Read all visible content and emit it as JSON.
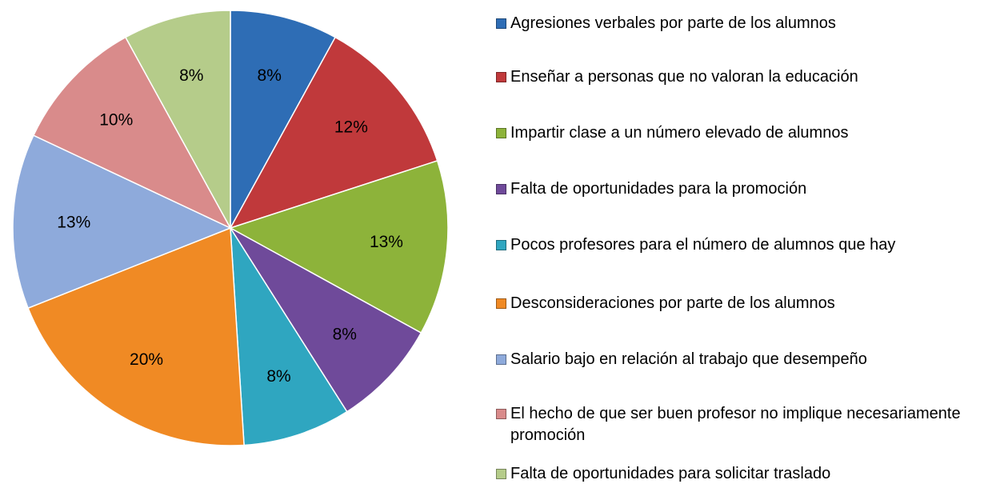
{
  "chart_data": {
    "type": "pie",
    "categories": [
      "Agresiones verbales por parte de los alumnos",
      "Enseñar a personas que no valoran la educación",
      "Impartir clase a un número elevado de alumnos",
      "Falta de oportunidades para la promoción",
      "Pocos profesores para el número de alumnos que hay",
      "Desconsideraciones por parte de los alumnos",
      "Salario bajo en relación al trabajo que desempeño",
      "El hecho de que ser buen profesor no implique necesariamente promoción",
      "Falta de oportunidades para solicitar traslado"
    ],
    "values": [
      8,
      12,
      13,
      8,
      8,
      20,
      13,
      10,
      8
    ],
    "value_labels": [
      "8%",
      "12%",
      "13%",
      "8%",
      "8%",
      "20%",
      "13%",
      "10%",
      "8%"
    ],
    "colors": [
      "#2e6db5",
      "#c0393b",
      "#8db33a",
      "#6f4a9a",
      "#2fa6c0",
      "#f08a24",
      "#8eaadb",
      "#d98b8b",
      "#b5cc8a"
    ],
    "legend": "right"
  }
}
